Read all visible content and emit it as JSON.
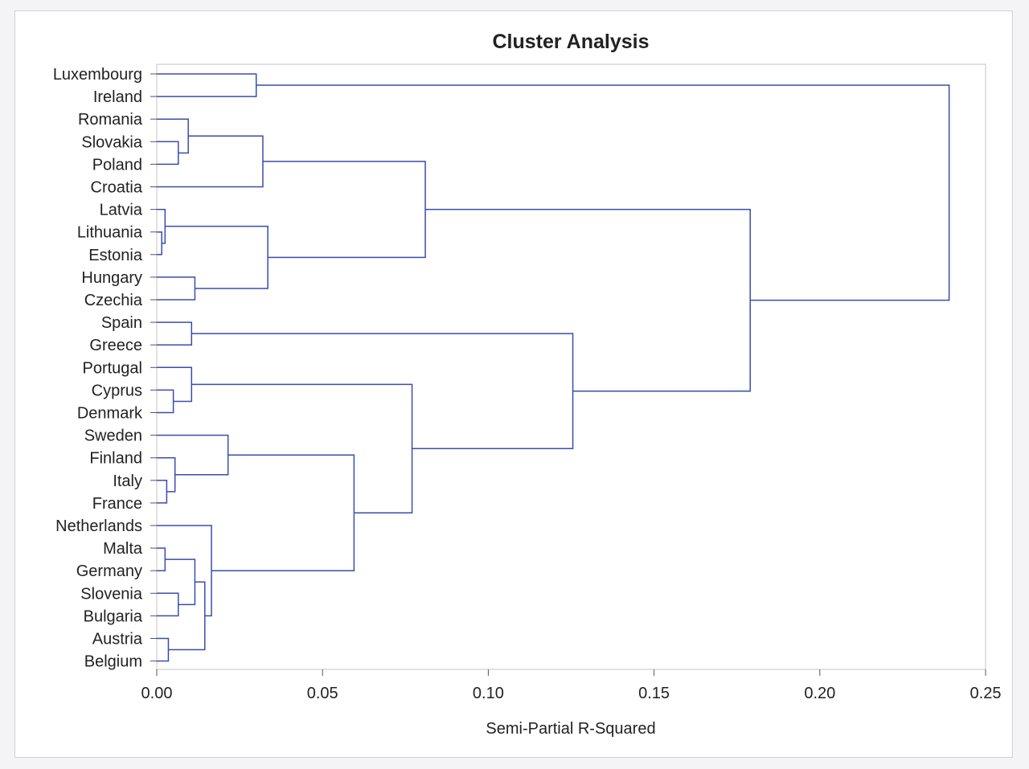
{
  "chart_data": {
    "type": "dendrogram",
    "title": "Cluster Analysis",
    "xlabel": "Semi-Partial R-Squared",
    "ylabel": "",
    "xlim": [
      0,
      0.25
    ],
    "xticks": [
      0,
      0.05,
      0.1,
      0.15,
      0.2,
      0.25
    ],
    "xtick_labels": [
      "0.00",
      "0.05",
      "0.10",
      "0.15",
      "0.20",
      "0.25"
    ],
    "grid": false,
    "line_color": "#3a4dab",
    "leaves": [
      "Luxembourg",
      "Ireland",
      "Romania",
      "Slovakia",
      "Poland",
      "Croatia",
      "Latvia",
      "Lithuania",
      "Estonia",
      "Hungary",
      "Czechia",
      "Spain",
      "Greece",
      "Portugal",
      "Cyprus",
      "Denmark",
      "Sweden",
      "Finland",
      "Italy",
      "France",
      "Netherlands",
      "Malta",
      "Germany",
      "Slovenia",
      "Bulgaria",
      "Austria",
      "Belgium"
    ],
    "merges": [
      {
        "left": "Lithuania",
        "right": "Estonia",
        "height": 0.0015
      },
      {
        "left": "Latvia",
        "right": "C1",
        "height": 0.0025
      },
      {
        "left": "Malta",
        "right": "Germany",
        "height": 0.0025
      },
      {
        "left": "Italy",
        "right": "France",
        "height": 0.003
      },
      {
        "left": "Austria",
        "right": "Belgium",
        "height": 0.0035
      },
      {
        "left": "Cyprus",
        "right": "Denmark",
        "height": 0.005
      },
      {
        "left": "Finland",
        "right": "C4",
        "height": 0.0055
      },
      {
        "left": "Slovakia",
        "right": "Poland",
        "height": 0.0065
      },
      {
        "left": "Slovenia",
        "right": "Bulgaria",
        "height": 0.0065
      },
      {
        "left": "Romania",
        "right": "C8",
        "height": 0.0095
      },
      {
        "left": "Spain",
        "right": "Greece",
        "height": 0.0105
      },
      {
        "left": "Portugal",
        "right": "C6",
        "height": 0.0105
      },
      {
        "left": "Hungary",
        "right": "Czechia",
        "height": 0.0115
      },
      {
        "left": "C3",
        "right": "C9",
        "height": 0.0115
      },
      {
        "left": "C14",
        "right": "C5",
        "height": 0.0145
      },
      {
        "left": "Netherlands",
        "right": "C15",
        "height": 0.0165
      },
      {
        "left": "Sweden",
        "right": "C7",
        "height": 0.0215
      },
      {
        "left": "Luxembourg",
        "right": "Ireland",
        "height": 0.03
      },
      {
        "left": "C10",
        "right": "Croatia",
        "height": 0.032
      },
      {
        "left": "C2",
        "right": "C13",
        "height": 0.0335
      },
      {
        "left": "C17",
        "right": "C16",
        "height": 0.0595
      },
      {
        "left": "C12",
        "right": "C21",
        "height": 0.077
      },
      {
        "left": "C19",
        "right": "C20",
        "height": 0.081
      },
      {
        "left": "C11",
        "right": "C22",
        "height": 0.1255
      },
      {
        "left": "C23",
        "right": "C24",
        "height": 0.179
      },
      {
        "left": "C18",
        "right": "C25",
        "height": 0.239
      }
    ]
  }
}
